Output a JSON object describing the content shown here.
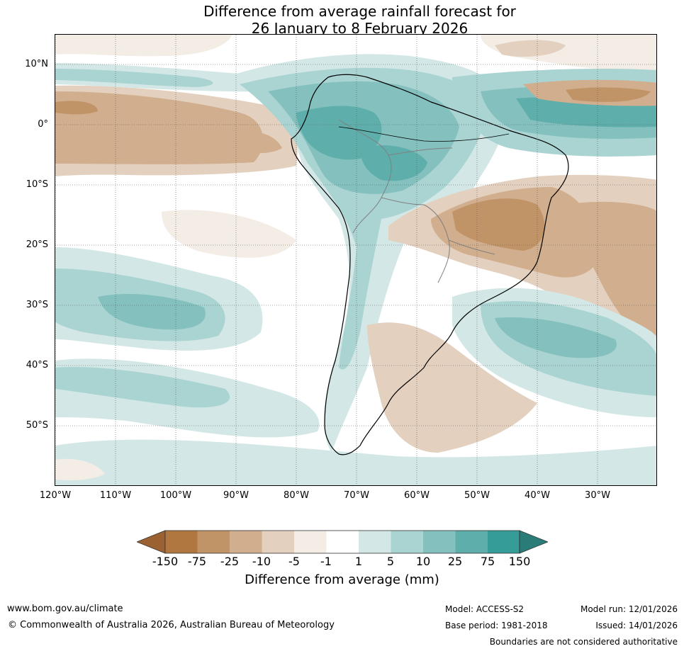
{
  "title": {
    "line1": "Difference from average rainfall forecast for",
    "line2": "26 January to 8 February 2026"
  },
  "map": {
    "lat_labels": [
      "10°N",
      "0°",
      "10°S",
      "20°S",
      "30°S",
      "40°S",
      "50°S"
    ],
    "lon_labels": [
      "120°W",
      "110°W",
      "100°W",
      "90°W",
      "80°W",
      "70°W",
      "60°W",
      "50°W",
      "40°W",
      "30°W"
    ],
    "lat_extent": [
      -60,
      15
    ],
    "lon_extent": [
      -120,
      -20
    ],
    "regions": [
      "Equatorial eastern Pacific: below average",
      "Northern South America and Amazon: above average",
      "Eastern Brazil interior: below average",
      "Subtropical South Atlantic off southern Brazil: above average",
      "Southeast Pacific near 30°S: above average"
    ]
  },
  "colorbar": {
    "ticks": [
      "-150",
      "-75",
      "-25",
      "-10",
      "-5",
      "-1",
      "1",
      "5",
      "10",
      "25",
      "75",
      "150"
    ],
    "colors": {
      "below_extend": "#9b6130",
      "below_150_75": "#b07840",
      "below_75_25": "#c19467",
      "below_25_10": "#d1ae8e",
      "below_10_5": "#e3d0be",
      "below_5_1": "#f3ede5",
      "near_zero": "#ffffff",
      "above_1_5": "#d3e8e6",
      "above_5_10": "#aad4d2",
      "above_10_25": "#84c0be",
      "above_25_75": "#5eaeab",
      "above_75_150": "#369c98",
      "above_extend": "#2a7c79"
    },
    "label": "Difference from average (mm)"
  },
  "footer": {
    "website": "www.bom.gov.au/climate",
    "copyright": "© Commonwealth of Australia 2026, Australian Bureau of Meteorology",
    "model": "Model: ACCESS-S2",
    "base_period": "Base period: 1981-2018",
    "model_run": "Model run: 12/01/2026",
    "issued": "Issued: 14/01/2026",
    "disclaimer": "Boundaries are not considered authoritative"
  }
}
